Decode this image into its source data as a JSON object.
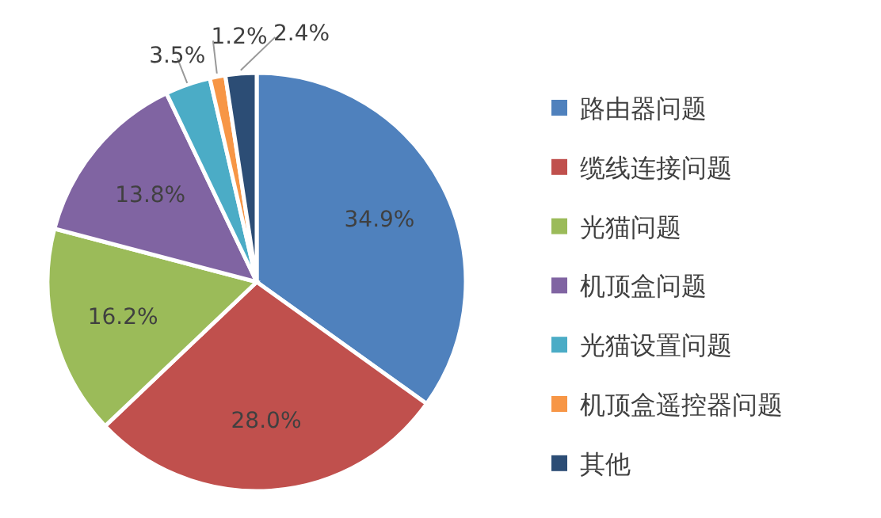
{
  "chart_data": {
    "type": "pie",
    "categories": [
      "路由器问题",
      "缆线连接问题",
      "光猫问题",
      "机顶盒问题",
      "光猫设置问题",
      "机顶盒遥控器问题",
      "其他"
    ],
    "values": [
      34.9,
      28.0,
      16.2,
      13.8,
      3.5,
      1.2,
      2.4
    ],
    "colors": [
      "#4f81bd",
      "#c0504d",
      "#9bbb59",
      "#8064a2",
      "#4bacc6",
      "#f79646",
      "#2c4d75"
    ],
    "data_labels": true,
    "value_labels": [
      "34.9%",
      "28.0%",
      "16.2%",
      "13.8%",
      "3.5%",
      "1.2%",
      "2.4%"
    ],
    "legend": "right"
  }
}
